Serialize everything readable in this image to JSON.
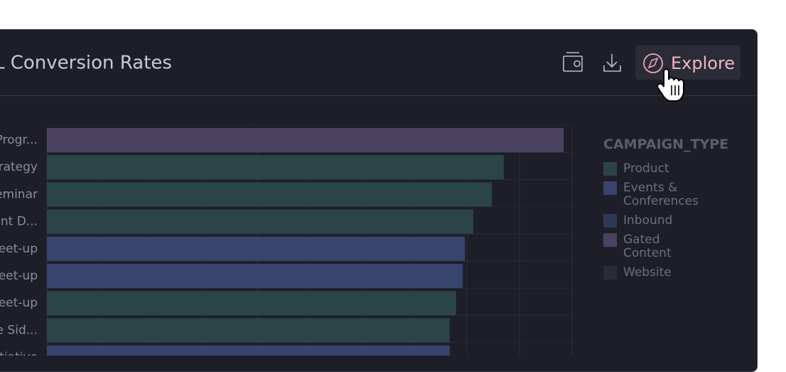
{
  "header": {
    "title": "L Conversion Rates",
    "actions": [
      "Explore"
    ]
  },
  "chart_data": {
    "type": "bar",
    "orientation": "horizontal",
    "categories": [
      "Progr...",
      "rategy",
      "eminar",
      "ont D...",
      "eet-up",
      "eet-up",
      "eet-up",
      "e Sid...",
      "itiative"
    ],
    "series": [
      {
        "name": "Product",
        "color": "#2b4448",
        "values": [
          null,
          8.7,
          8.47,
          8.12,
          null,
          null,
          7.79,
          7.67,
          null
        ]
      },
      {
        "name": "Events & Conferences",
        "color": "#37446b",
        "values": [
          null,
          null,
          null,
          null,
          7.96,
          7.92,
          null,
          null,
          7.67
        ]
      },
      {
        "name": "Inbound",
        "color": "#2e3a55",
        "values": [
          null,
          null,
          null,
          null,
          null,
          null,
          null,
          null,
          null
        ]
      },
      {
        "name": "Gated Content",
        "color": "#4a4360",
        "values": [
          9.84,
          null,
          null,
          null,
          null,
          null,
          null,
          null,
          null
        ]
      },
      {
        "name": "Website",
        "color": "#2a2b33",
        "values": [
          null,
          null,
          null,
          null,
          null,
          null,
          null,
          null,
          null
        ]
      }
    ],
    "xlim": [
      0,
      10
    ],
    "xticks": [
      0,
      1,
      2,
      3,
      4,
      5,
      6,
      7,
      8,
      9,
      10
    ],
    "grid": true,
    "legend": {
      "title": "CAMPAIGN_TYPE",
      "position": "right"
    }
  }
}
